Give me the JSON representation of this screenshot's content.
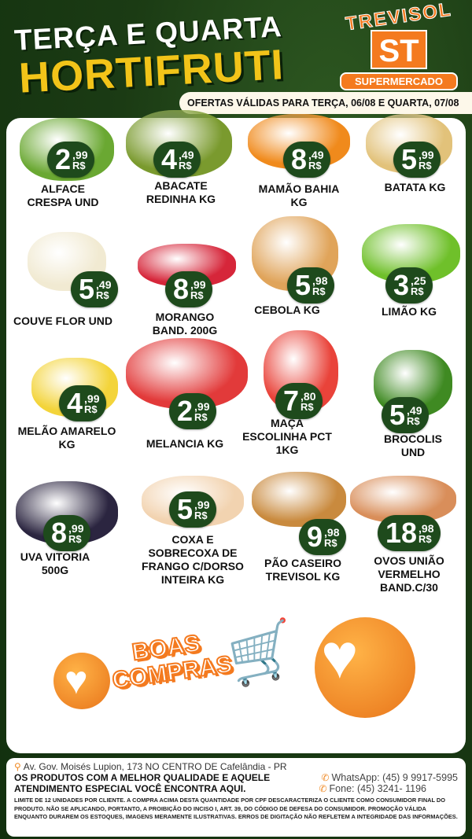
{
  "header": {
    "line1": "TERÇA E QUARTA",
    "line2": "HORTIFRUTI",
    "validity": "OFERTAS VÁLIDAS PARA TERÇA, 06/08 E QUARTA, 07/08"
  },
  "logo": {
    "top": "TREVISOL",
    "mark": "ST",
    "bottom": "SUPERMERCADO"
  },
  "currency": "R$",
  "products": [
    {
      "name": "ALFACE\nCRESPA UND",
      "int": "2",
      "cents": ",99",
      "color": "#6aa832"
    },
    {
      "name": "ABACATE\nREDINHA KG",
      "int": "4",
      "cents": ",49",
      "color": "#7a9a2e"
    },
    {
      "name": "MAMÃO BAHIA\nKG",
      "int": "8",
      "cents": ",49",
      "color": "#f08a1c"
    },
    {
      "name": "BATATA KG",
      "int": "5",
      "cents": ",99",
      "color": "#e2c27a"
    },
    {
      "name": "COUVE FLOR UND",
      "int": "5",
      "cents": ",49",
      "color": "#f1ead2"
    },
    {
      "name": "MORANGO\nBAND. 200G",
      "int": "8",
      "cents": ",99",
      "color": "#d6263a"
    },
    {
      "name": "CEBOLA KG",
      "int": "5",
      "cents": ",98",
      "color": "#e0a45a"
    },
    {
      "name": "LIMÃO KG",
      "int": "3",
      "cents": ",25",
      "color": "#6fc02a"
    },
    {
      "name": "MELÃO AMARELO\nKG",
      "int": "4",
      "cents": ",99",
      "color": "#f3d43a"
    },
    {
      "name": "MELANCIA KG",
      "int": "2",
      "cents": ",99",
      "color": "#e23a3a"
    },
    {
      "name": "MAÇA\nESCOLINHA PCT\n1KG",
      "int": "7",
      "cents": ",80",
      "color": "#e9433a"
    },
    {
      "name": "BROCOLIS\nUND",
      "int": "5",
      "cents": ",49",
      "color": "#3f8a22"
    },
    {
      "name": "UVA VITORIA\n500G",
      "int": "8",
      "cents": ",99",
      "color": "#2b2540"
    },
    {
      "name": "COXA E\nSOBRECOXA DE\nFRANGO C/DORSO\nINTEIRA KG",
      "int": "5",
      "cents": ",99",
      "color": "#f2d3b0"
    },
    {
      "name": "PÃO CASEIRO\nTREVISOL KG",
      "int": "9",
      "cents": ",98",
      "color": "#c98a3e"
    },
    {
      "name": "OVOS UNIÃO\nVERMELHO\nBAND.C/30",
      "int": "18",
      "cents": ",98",
      "color": "#d98e5a"
    }
  ],
  "banner": {
    "line1": "BOAS",
    "line2": "COMPRAS"
  },
  "footer": {
    "address": "Av. Gov. Moisés Lupion, 173 NO  CENTRO DE Cafelândia - PR",
    "slogan1": "OS PRODUTOS COM A MELHOR QUALIDADE E AQUELE",
    "slogan2": "ATENDIMENTO ESPECIAL VOCÊ ENCONTRA AQUI.",
    "whatsapp": "WhatsApp: (45) 9 9917-5995",
    "phone": "Fone: (45) 3241- 1196",
    "disclaimer": "LIMITE DE 12 UNIDADES POR CLIENTE. A COMPRA ACIMA DESTA QUANTIDADE POR CPF DESCARACTERIZA O CLIENTE COMO CONSUMIDOR FINAL DO PRODUTO. NÃO SE APLICANDO, PORTANTO, A PROIBIÇÃO DO INCISO I, ART. 39, DO CÓDIGO DE DEFESA DO CONSUMIDOR. PROMOÇÃO VÁLIDA ENQUANTO DURAREM OS ESTOQUES, IMAGENS MERAMENTE ILUSTRATIVAS. ERROS DE DIGITAÇÃO NÃO REFLETEM A INTEGRIDADE DAS INFORMAÇÕES."
  }
}
